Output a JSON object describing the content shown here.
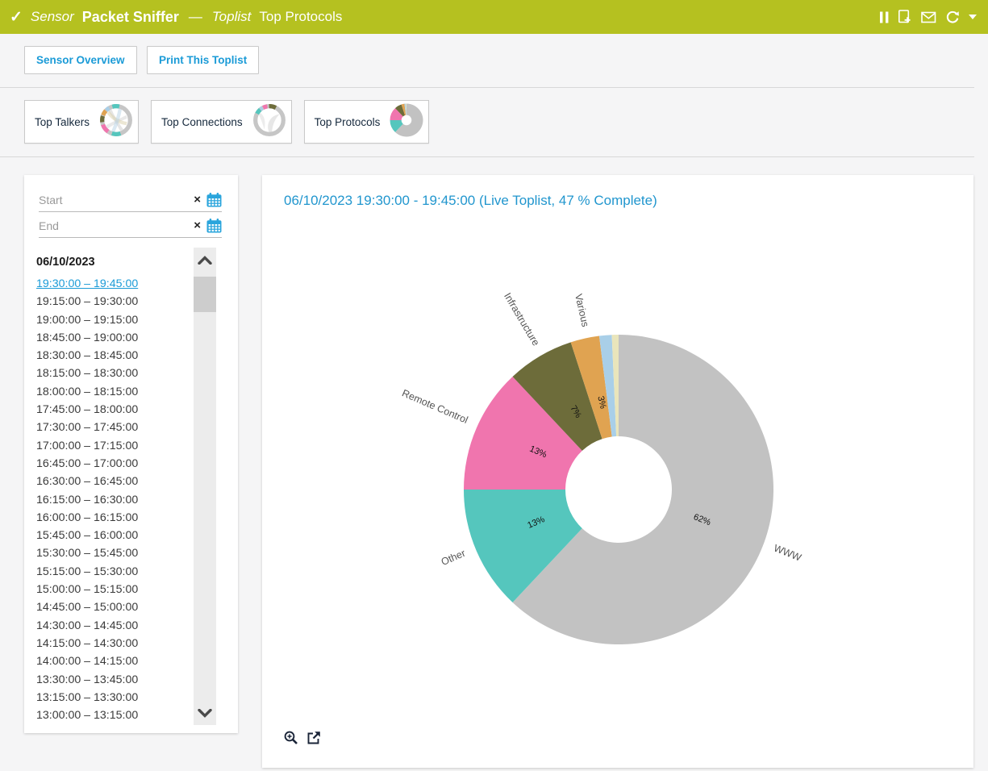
{
  "header": {
    "bg_color": "#b5c120",
    "status_icon": "check-icon",
    "breadcrumb": {
      "type_label": "Sensor",
      "sensor_name": "Packet Sniffer",
      "separator": "—",
      "section_label": "Toplist",
      "page_name": "Top Protocols"
    },
    "icons": [
      "pause-icon",
      "report-icon",
      "email-icon",
      "refresh-icon",
      "caret-down-icon"
    ]
  },
  "toolbar": {
    "buttons": [
      {
        "label": "Sensor Overview"
      },
      {
        "label": "Print This Toplist"
      }
    ],
    "accent_color": "#1b9bd7"
  },
  "toplist_tabs": [
    {
      "label": "Top Talkers",
      "icon": "chord-diagram-icon",
      "active": false
    },
    {
      "label": "Top Connections",
      "icon": "chord-diagram-icon",
      "active": false
    },
    {
      "label": "Top Protocols",
      "icon": "donut-chart-icon",
      "active": true
    }
  ],
  "filter_panel": {
    "start_placeholder": "Start",
    "end_placeholder": "End",
    "clear_icon": "×",
    "calendar_icon": "calendar-icon",
    "date_header": "06/10/2023",
    "intervals": [
      {
        "label": "19:30:00 – 19:45:00",
        "selected": true
      },
      {
        "label": "19:15:00 – 19:30:00",
        "selected": false
      },
      {
        "label": "19:00:00 – 19:15:00",
        "selected": false
      },
      {
        "label": "18:45:00 – 19:00:00",
        "selected": false
      },
      {
        "label": "18:30:00 – 18:45:00",
        "selected": false
      },
      {
        "label": "18:15:00 – 18:30:00",
        "selected": false
      },
      {
        "label": "18:00:00 – 18:15:00",
        "selected": false
      },
      {
        "label": "17:45:00 – 18:00:00",
        "selected": false
      },
      {
        "label": "17:30:00 – 17:45:00",
        "selected": false
      },
      {
        "label": "17:00:00 – 17:15:00",
        "selected": false
      },
      {
        "label": "16:45:00 – 17:00:00",
        "selected": false
      },
      {
        "label": "16:30:00 – 16:45:00",
        "selected": false
      },
      {
        "label": "16:15:00 – 16:30:00",
        "selected": false
      },
      {
        "label": "16:00:00 – 16:15:00",
        "selected": false
      },
      {
        "label": "15:45:00 – 16:00:00",
        "selected": false
      },
      {
        "label": "15:30:00 – 15:45:00",
        "selected": false
      },
      {
        "label": "15:15:00 – 15:30:00",
        "selected": false
      },
      {
        "label": "15:00:00 – 15:15:00",
        "selected": false
      },
      {
        "label": "14:45:00 – 15:00:00",
        "selected": false
      },
      {
        "label": "14:30:00 – 14:45:00",
        "selected": false
      },
      {
        "label": "14:15:00 – 14:30:00",
        "selected": false
      },
      {
        "label": "14:00:00 – 14:15:00",
        "selected": false
      },
      {
        "label": "13:30:00 – 13:45:00",
        "selected": false
      },
      {
        "label": "13:15:00 – 13:30:00",
        "selected": false
      },
      {
        "label": "13:00:00 – 13:15:00",
        "selected": false
      }
    ]
  },
  "chart_panel": {
    "title_color": "#2196ce",
    "footer_icons": [
      "zoom-in-icon",
      "open-new-window-icon"
    ]
  },
  "chart_data": {
    "type": "pie",
    "donut": true,
    "title": "06/10/2023 19:30:00 - 19:45:00 (Live Toplist, 47 % Complete)",
    "start_angle_deg": 0,
    "direction": "clockwise",
    "legend_position": "none",
    "labels_rotated_radially": true,
    "series": [
      {
        "label": "WWW",
        "percent": 62,
        "percent_label": "62%",
        "color": "#c2c2c2"
      },
      {
        "label": "Other",
        "percent": 13,
        "percent_label": "13%",
        "color": "#55c6bd"
      },
      {
        "label": "Remote Control",
        "percent": 13,
        "percent_label": "13%",
        "color": "#f075ae"
      },
      {
        "label": "Infrastructure",
        "percent": 7,
        "percent_label": "7%",
        "color": "#6d6c3a"
      },
      {
        "label": "Various",
        "percent": 3,
        "percent_label": "3%",
        "color": "#e0a351"
      },
      {
        "label": "",
        "percent": 1.3,
        "percent_label": "",
        "color": "#a9cfe8"
      },
      {
        "label": "",
        "percent": 0.7,
        "percent_label": "",
        "color": "#e9e5bb"
      }
    ]
  }
}
